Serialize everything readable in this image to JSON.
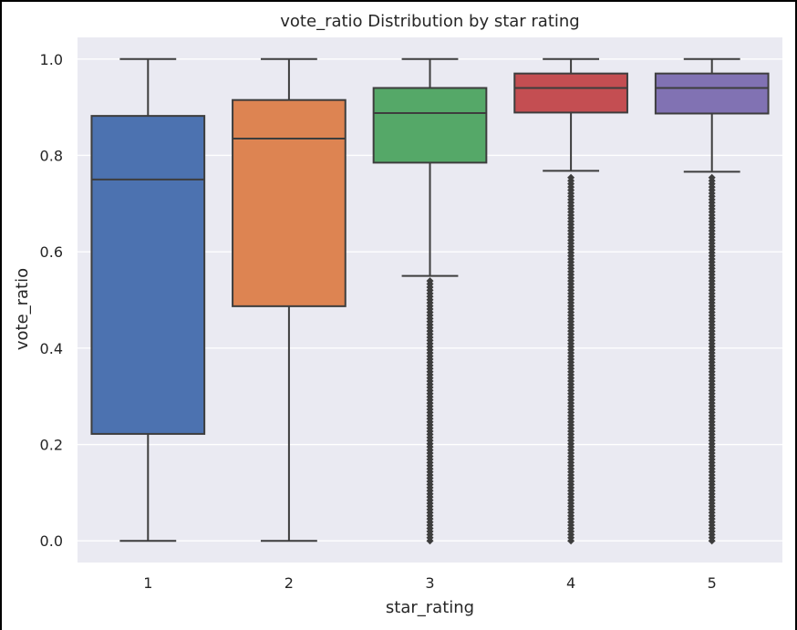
{
  "chart_data": {
    "type": "box",
    "title": "vote_ratio Distribution by star rating",
    "xlabel": "star_rating",
    "ylabel": "vote_ratio",
    "ylim": [
      -0.045,
      1.045
    ],
    "yticks": [
      "0.0",
      "0.2",
      "0.4",
      "0.6",
      "0.8",
      "1.0"
    ],
    "grid": true,
    "categories": [
      "1",
      "2",
      "3",
      "4",
      "5"
    ],
    "boxes": [
      {
        "category": "1",
        "whisker_low": 0.0,
        "q1": 0.222,
        "median": 0.75,
        "q3": 0.882,
        "whisker_high": 1.0,
        "outliers_range": null,
        "color": "#4c72b0"
      },
      {
        "category": "2",
        "whisker_low": 0.0,
        "q1": 0.487,
        "median": 0.835,
        "q3": 0.915,
        "whisker_high": 1.0,
        "outliers_range": null,
        "color": "#dd8452"
      },
      {
        "category": "3",
        "whisker_low": 0.55,
        "q1": 0.785,
        "median": 0.888,
        "q3": 0.94,
        "whisker_high": 1.0,
        "outliers_range": [
          0.0,
          0.55
        ],
        "color": "#55a868"
      },
      {
        "category": "4",
        "whisker_low": 0.768,
        "q1": 0.889,
        "median": 0.94,
        "q3": 0.97,
        "whisker_high": 1.0,
        "outliers_range": [
          0.0,
          0.768
        ],
        "color": "#c44e52"
      },
      {
        "category": "5",
        "whisker_low": 0.766,
        "q1": 0.887,
        "median": 0.94,
        "q3": 0.97,
        "whisker_high": 1.0,
        "outliers_range": [
          0.0,
          0.766
        ],
        "color": "#8172b3"
      }
    ]
  },
  "colors": {
    "background": "#eaeaf2",
    "grid": "#ffffff",
    "line": "#3d3d3d"
  }
}
